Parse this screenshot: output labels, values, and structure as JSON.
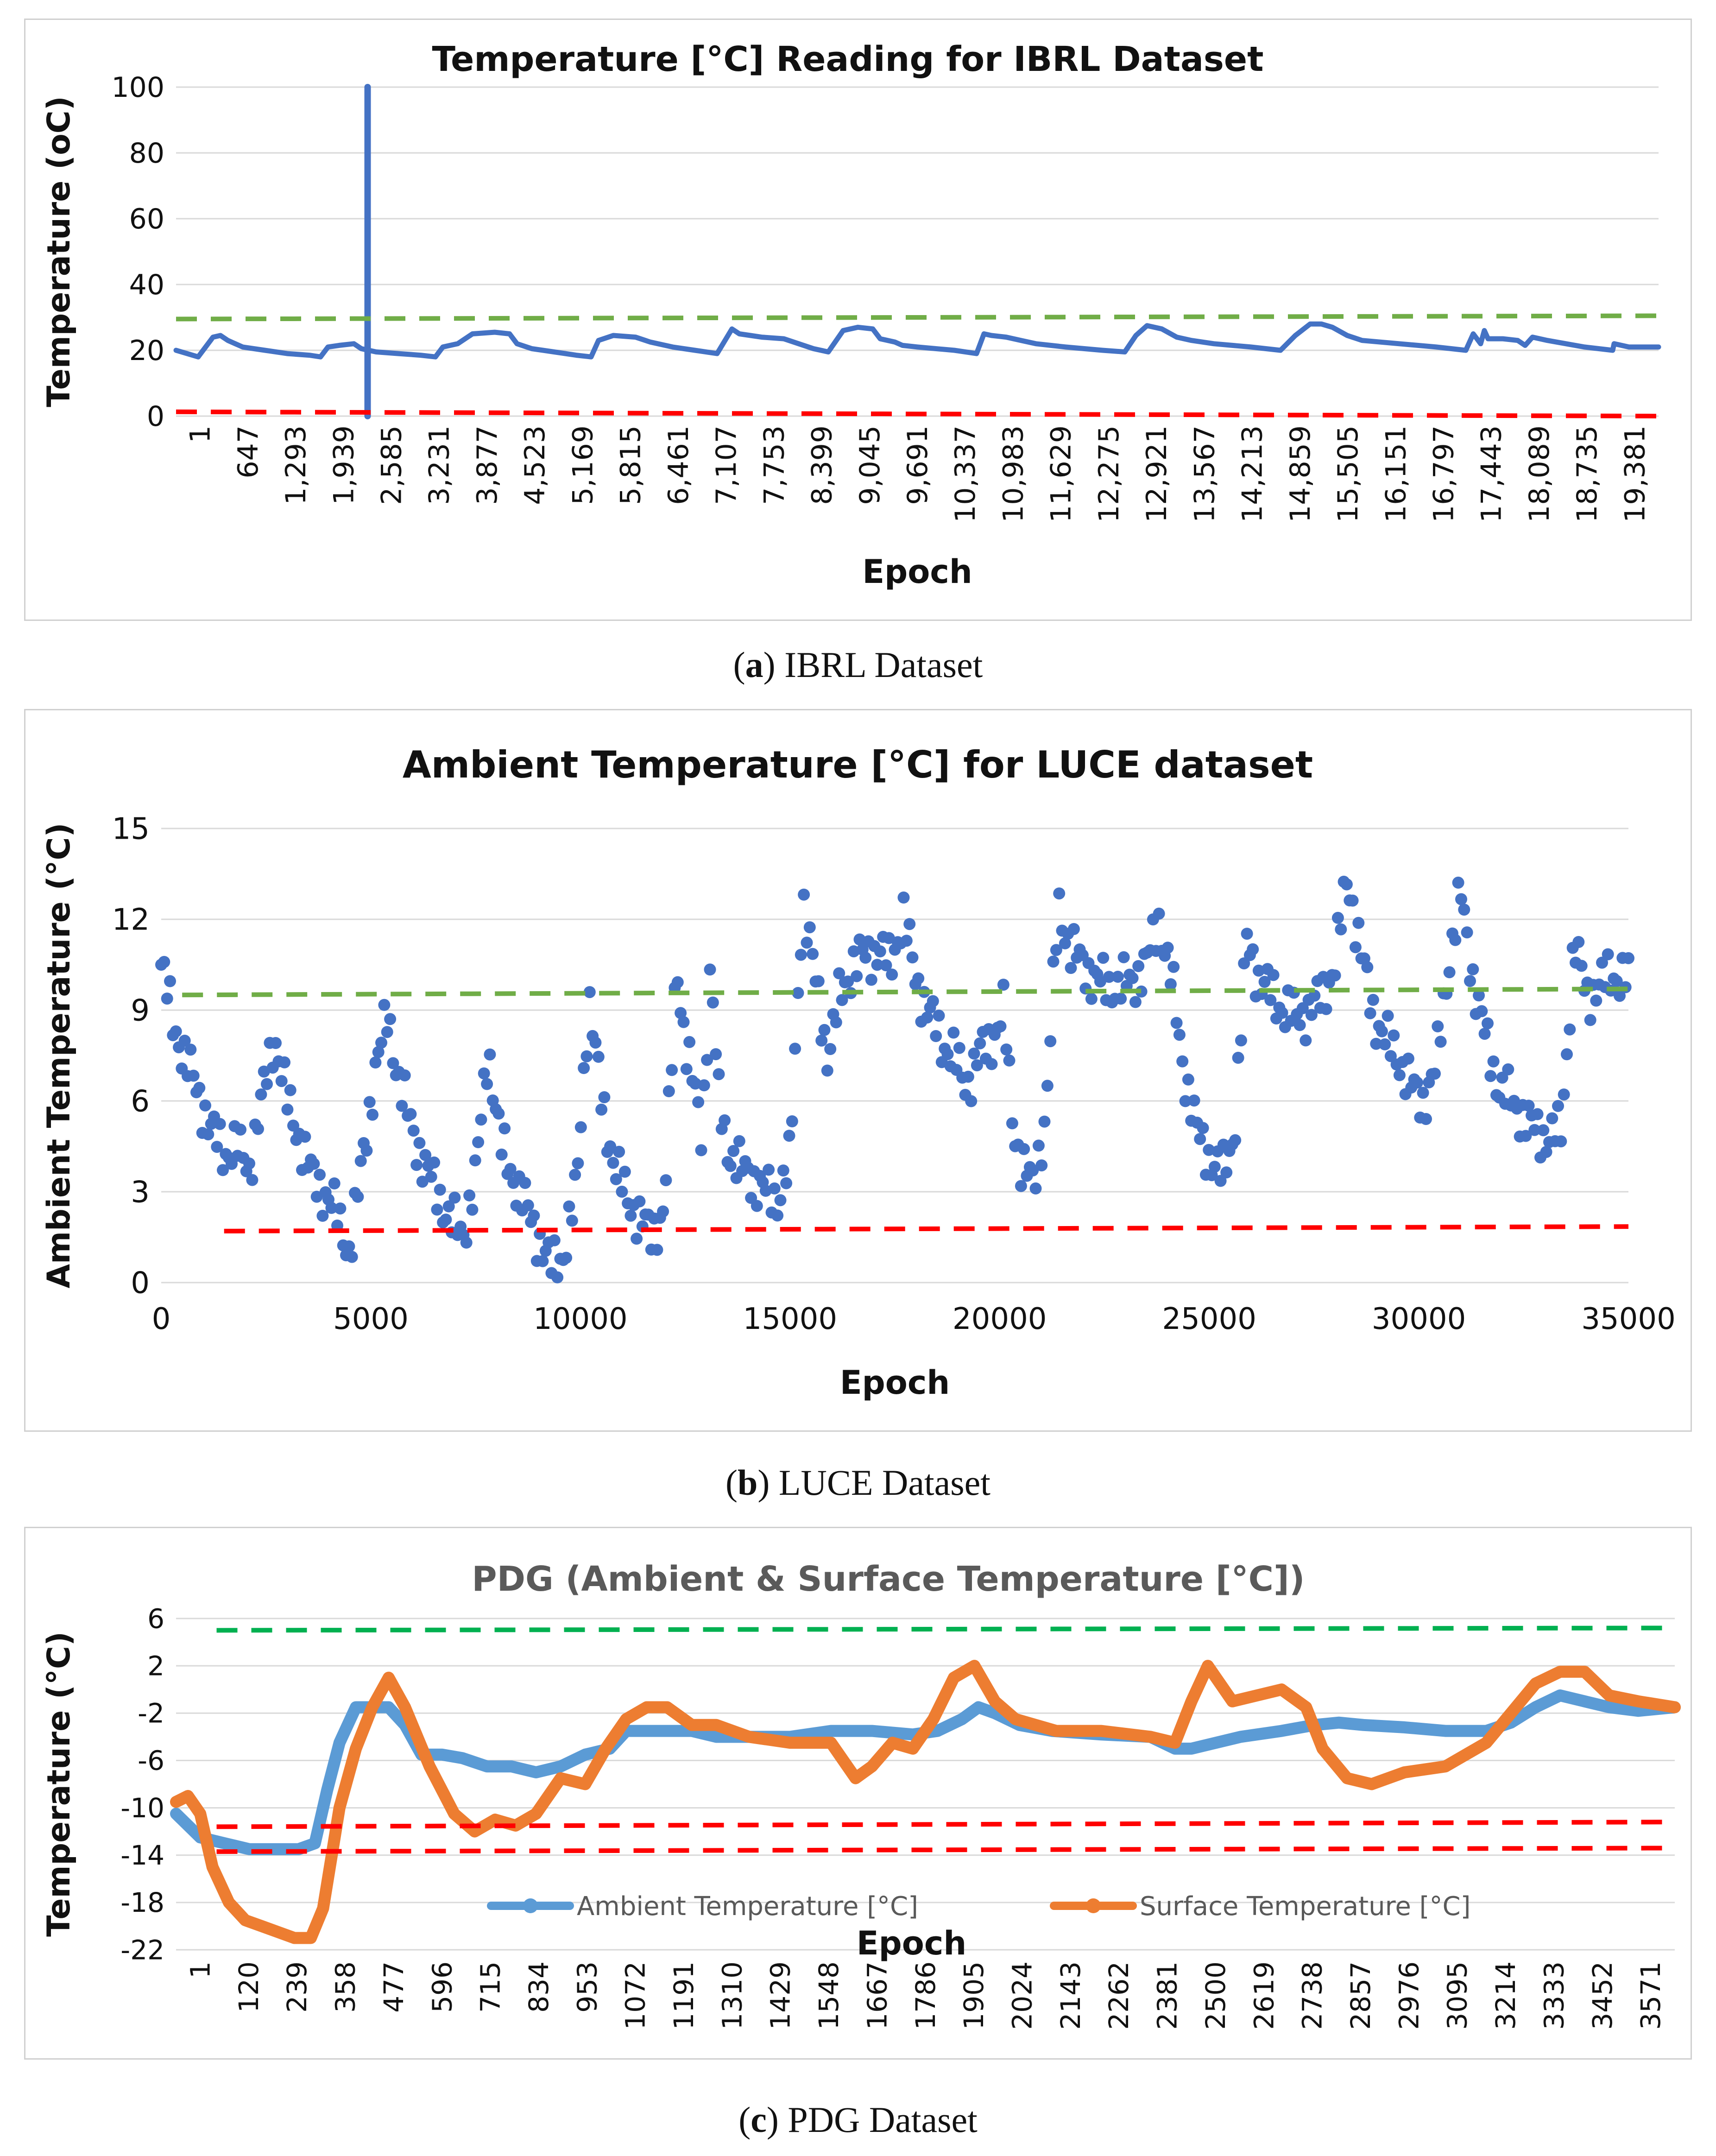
{
  "panels": [
    {
      "caption_letter": "a",
      "caption_text": "IBRL Dataset",
      "chart_data": {
        "type": "line",
        "title": "Temperature [°C] Reading for IBRL Dataset",
        "xlabel": "Epoch",
        "ylabel": "Temperature (oC)",
        "xlim": [
          1,
          20000
        ],
        "ylim": [
          0,
          100
        ],
        "y_ticks": [
          0,
          20,
          40,
          60,
          80,
          100
        ],
        "x_tick_labels": [
          "1",
          "647",
          "1,293",
          "1,939",
          "2,585",
          "3,231",
          "3,877",
          "4,523",
          "5,169",
          "5,815",
          "6,461",
          "7,107",
          "7,753",
          "8,399",
          "9,045",
          "9,691",
          "10,337",
          "10,983",
          "11,629",
          "12,275",
          "12,921",
          "13,567",
          "14,213",
          "14,859",
          "15,505",
          "16,151",
          "16,797",
          "17,443",
          "18,089",
          "18,735",
          "19,381"
        ],
        "grid": true,
        "legend": "none",
        "series": [
          {
            "color": "#4472c4",
            "x": [
              1,
              300,
              500,
              600,
              700,
              900,
              1200,
              1500,
              1800,
              1950,
              2050,
              2200,
              2400,
              2500,
              2600,
              2700,
              3000,
              3300,
              3500,
              3600,
              3800,
              4000,
              4300,
              4500,
              4600,
              4800,
              5100,
              5400,
              5600,
              5700,
              5900,
              6200,
              6400,
              6700,
              7000,
              7300,
              7500,
              7600,
              7750,
              7900,
              8200,
              8600,
              8800,
              9000,
              9200,
              9400,
              9500,
              9700,
              9800,
              10000,
              10500,
              10800,
              10900,
              11000,
              11200,
              11400,
              11600,
              12000,
              12500,
              12800,
              12950,
              13100,
              13300,
              13500,
              13700,
              14000,
              14500,
              14900,
              15100,
              15300,
              15450,
              15600,
              15800,
              16000,
              16500,
              17000,
              17400,
              17500,
              17600,
              17650,
              17700,
              17900,
              18100,
              18200,
              18300,
              18500,
              19000,
              19381,
              19400,
              19600,
              19800,
              20000
            ],
            "y": [
              20,
              18,
              24,
              24.5,
              23,
              21,
              20,
              19,
              18.5,
              18,
              21,
              21.5,
              22,
              20.5,
              20,
              19.5,
              19,
              18.5,
              18,
              21,
              22,
              25,
              25.5,
              25,
              22,
              20.5,
              19.5,
              18.5,
              18,
              23,
              24.5,
              24,
              22.5,
              21,
              20,
              19,
              26.5,
              25,
              24.5,
              24,
              23.5,
              20.5,
              19.5,
              26,
              27,
              26.5,
              23.5,
              22.5,
              21.5,
              21,
              20,
              19,
              25,
              24.5,
              24,
              23,
              22,
              21,
              20,
              19.5,
              24.5,
              27.5,
              26.5,
              24,
              23,
              22,
              21,
              20,
              24.5,
              28,
              28,
              27,
              24.5,
              23,
              22,
              21,
              20,
              25,
              22,
              26,
              23.5,
              23.5,
              23,
              21.5,
              24,
              23,
              21,
              20,
              22,
              21,
              21,
              21
            ]
          },
          {
            "color": "#4472c4",
            "x": [
              2585,
              2585
            ],
            "y": [
              0,
              100
            ]
          },
          {
            "color": "#70ad47",
            "style": "dashed",
            "x": [
              1,
              20000
            ],
            "y": [
              29.5,
              30.5
            ]
          },
          {
            "color": "#ff0000",
            "style": "dashed",
            "x": [
              1,
              20000
            ],
            "y": [
              1.3,
              0
            ]
          }
        ]
      }
    },
    {
      "caption_letter": "b",
      "caption_text": "LUCE Dataset",
      "chart_data": {
        "type": "scatter",
        "title": "Ambient Temperature [°C] for LUCE dataset",
        "xlabel": "Epoch",
        "ylabel": "Ambient Temperature (°C)",
        "xlim": [
          0,
          35000
        ],
        "ylim": [
          0,
          15
        ],
        "x_ticks": [
          0,
          5000,
          10000,
          15000,
          20000,
          25000,
          30000,
          35000
        ],
        "y_ticks": [
          0,
          3,
          6,
          9,
          12,
          15
        ],
        "grid": true,
        "legend": "none",
        "series": [
          {
            "color": "#4472c4",
            "x": [
              0,
              300,
              600,
              900,
              1200,
              1500,
              1800,
              2100,
              2400,
              2700,
              3000,
              3300,
              3600,
              3900,
              4200,
              4500,
              4800,
              5100,
              5400,
              5700,
              6000,
              6300,
              6600,
              6900,
              7200,
              7500,
              7800,
              8100,
              8400,
              8700,
              9000,
              9300,
              9600,
              9900,
              10200,
              10500,
              10800,
              11100,
              11400,
              11700,
              12000,
              12300,
              12500,
              12700,
              12900,
              13100,
              13300,
              13500,
              13800,
              14100,
              14400,
              14700,
              15000,
              15300,
              15600,
              15900,
              16200,
              16500,
              16800,
              17100,
              17400,
              17700,
              18000,
              18300,
              18600,
              18900,
              19200,
              19500,
              19800,
              20100,
              20300,
              20500,
              20800,
              21100,
              21400,
              21700,
              22000,
              22300,
              22600,
              22900,
              23200,
              23500,
              23800,
              24100,
              24400,
              24700,
              25000,
              25300,
              25600,
              25900,
              26200,
              26500,
              26800,
              27100,
              27400,
              27700,
              28000,
              28300,
              28600,
              28900,
              29200,
              29500,
              29800,
              30100,
              30400,
              30700,
              31000,
              31300,
              31600,
              31900,
              32200,
              32500,
              32800,
              33100,
              33400,
              33700,
              34000,
              34300,
              34600,
              35000
            ],
            "y": [
              10.5,
              8.5,
              7.3,
              6.2,
              5.0,
              4.3,
              4.5,
              3.8,
              6.0,
              8.2,
              6.0,
              4.8,
              3.5,
              3.0,
              2.2,
              1.0,
              4.0,
              7.0,
              8.8,
              6.5,
              5.0,
              3.8,
              3.0,
              2.0,
              1.6,
              3.5,
              7.8,
              4.5,
              3.5,
              2.5,
              1.5,
              0.5,
              1.0,
              3.0,
              9.5,
              6.0,
              4.0,
              2.8,
              2.2,
              1.5,
              2.5,
              10.5,
              8.0,
              6.5,
              4.8,
              10.5,
              6.0,
              4.5,
              3.8,
              3.5,
              3.0,
              2.8,
              4.0,
              12.8,
              10.0,
              7.5,
              9.5,
              10.5,
              10.8,
              11.0,
              10.5,
              12.2,
              10.0,
              9.0,
              8.0,
              7.5,
              6.5,
              7.5,
              8.0,
              9.0,
              5.5,
              4.0,
              3.2,
              5.5,
              12.5,
              11.0,
              10.5,
              10.0,
              9.8,
              9.8,
              10.0,
              10.5,
              12.0,
              10.0,
              7.0,
              5.0,
              4.2,
              3.5,
              5.0,
              11.3,
              10.0,
              9.5,
              9.0,
              8.8,
              9.0,
              9.5,
              10.5,
              13.5,
              11.0,
              9.0,
              8.0,
              7.5,
              6.5,
              6.0,
              7.0,
              10.5,
              12.8,
              10.0,
              8.0,
              6.5,
              6.0,
              5.5,
              5.0,
              4.8,
              5.0,
              11.2,
              9.5,
              9.8,
              10.2,
              10.0
            ]
          },
          {
            "color": "#70ad47",
            "style": "dashed",
            "x": [
              500,
              35000
            ],
            "y": [
              9.5,
              9.7
            ]
          },
          {
            "color": "#ff0000",
            "style": "dashed",
            "x": [
              1500,
              35000
            ],
            "y": [
              1.7,
              1.85
            ]
          }
        ]
      }
    },
    {
      "caption_letter": "c",
      "caption_text": "PDG Dataset",
      "chart_data": {
        "type": "line",
        "title": "PDG (Ambient & Surface Temperature [°C])",
        "xlabel": "Epoch",
        "ylabel": "Temperature (°C)",
        "xlim": [
          1,
          3660
        ],
        "ylim": [
          -22,
          6
        ],
        "y_ticks": [
          -22,
          -18,
          -14,
          -10,
          -6,
          -2,
          2,
          6
        ],
        "x_tick_labels": [
          "1",
          "120",
          "239",
          "358",
          "477",
          "596",
          "715",
          "834",
          "953",
          "1072",
          "1191",
          "1310",
          "1429",
          "1548",
          "1667",
          "1786",
          "1905",
          "2024",
          "2143",
          "2262",
          "2381",
          "2500",
          "2619",
          "2738",
          "2857",
          "2976",
          "3095",
          "3214",
          "3333",
          "3452",
          "3571"
        ],
        "grid": true,
        "legend": "bottom",
        "series": [
          {
            "name": "Ambient Temperature [°C]",
            "color": "#5b9bd5",
            "x": [
              1,
              60,
              120,
              180,
              240,
              300,
              340,
              370,
              400,
              440,
              480,
              520,
              560,
              600,
              650,
              700,
              760,
              820,
              880,
              940,
              1000,
              1060,
              1100,
              1150,
              1200,
              1260,
              1320,
              1400,
              1500,
              1600,
              1700,
              1800,
              1860,
              1920,
              1960,
              2000,
              2060,
              2140,
              2260,
              2380,
              2440,
              2480,
              2540,
              2600,
              2700,
              2780,
              2840,
              2900,
              3000,
              3100,
              3200,
              3260,
              3320,
              3380,
              3440,
              3500,
              3571,
              3660
            ],
            "y": [
              -10.5,
              -12.5,
              -13.0,
              -13.5,
              -13.5,
              -13.5,
              -13.0,
              -8.5,
              -4.5,
              -1.5,
              -1.5,
              -1.5,
              -3.0,
              -5.5,
              -5.5,
              -5.8,
              -6.5,
              -6.5,
              -7.0,
              -6.5,
              -5.5,
              -5.0,
              -3.5,
              -3.5,
              -3.5,
              -3.5,
              -4.0,
              -4.0,
              -4.0,
              -3.5,
              -3.5,
              -3.8,
              -3.5,
              -2.5,
              -1.5,
              -2.0,
              -3.0,
              -3.5,
              -3.8,
              -4.0,
              -5.0,
              -5.0,
              -4.5,
              -4.0,
              -3.5,
              -3.0,
              -2.8,
              -3.0,
              -3.2,
              -3.5,
              -3.5,
              -2.8,
              -1.5,
              -0.5,
              -1.0,
              -1.5,
              -1.8,
              -1.5
            ]
          },
          {
            "name": "Surface Temperature [°C]",
            "color": "#ed7d31",
            "x": [
              1,
              30,
              60,
              90,
              130,
              170,
              210,
              250,
              290,
              330,
              360,
              400,
              440,
              480,
              520,
              560,
              620,
              680,
              730,
              780,
              830,
              880,
              940,
              1000,
              1050,
              1100,
              1150,
              1200,
              1260,
              1320,
              1400,
              1500,
              1600,
              1660,
              1700,
              1750,
              1800,
              1850,
              1900,
              1950,
              2000,
              2050,
              2150,
              2260,
              2380,
              2440,
              2480,
              2520,
              2580,
              2640,
              2700,
              2760,
              2800,
              2860,
              2920,
              3000,
              3100,
              3200,
              3260,
              3320,
              3380,
              3440,
              3500,
              3571,
              3660
            ],
            "y": [
              -9.5,
              -9.0,
              -10.5,
              -15.0,
              -18.0,
              -19.5,
              -20.0,
              -20.5,
              -21.0,
              -21.0,
              -18.5,
              -10.0,
              -5.0,
              -1.5,
              1.0,
              -1.5,
              -6.5,
              -10.5,
              -12.0,
              -11.0,
              -11.5,
              -10.5,
              -7.5,
              -8.0,
              -5.0,
              -2.5,
              -1.5,
              -1.5,
              -3.0,
              -3.0,
              -4.0,
              -4.5,
              -4.5,
              -7.5,
              -6.5,
              -4.5,
              -5.0,
              -2.5,
              1.0,
              2.0,
              -1.0,
              -2.5,
              -3.5,
              -3.5,
              -4.0,
              -4.5,
              -1.0,
              2.0,
              -1.0,
              -0.5,
              0.0,
              -1.5,
              -5.0,
              -7.5,
              -8.0,
              -7.0,
              -6.5,
              -4.5,
              -2.0,
              0.5,
              1.5,
              1.5,
              -0.5,
              -1.0,
              -1.5
            ]
          },
          {
            "color": "#00b050",
            "style": "dashed",
            "x": [
              100,
              3660
            ],
            "y": [
              5.0,
              5.2
            ]
          },
          {
            "color": "#ff0000",
            "style": "dashed",
            "x": [
              100,
              3660
            ],
            "y": [
              -11.6,
              -11.2
            ]
          },
          {
            "color": "#ff0000",
            "style": "dashed",
            "x": [
              100,
              3660
            ],
            "y": [
              -13.7,
              -13.4
            ]
          }
        ]
      }
    }
  ]
}
